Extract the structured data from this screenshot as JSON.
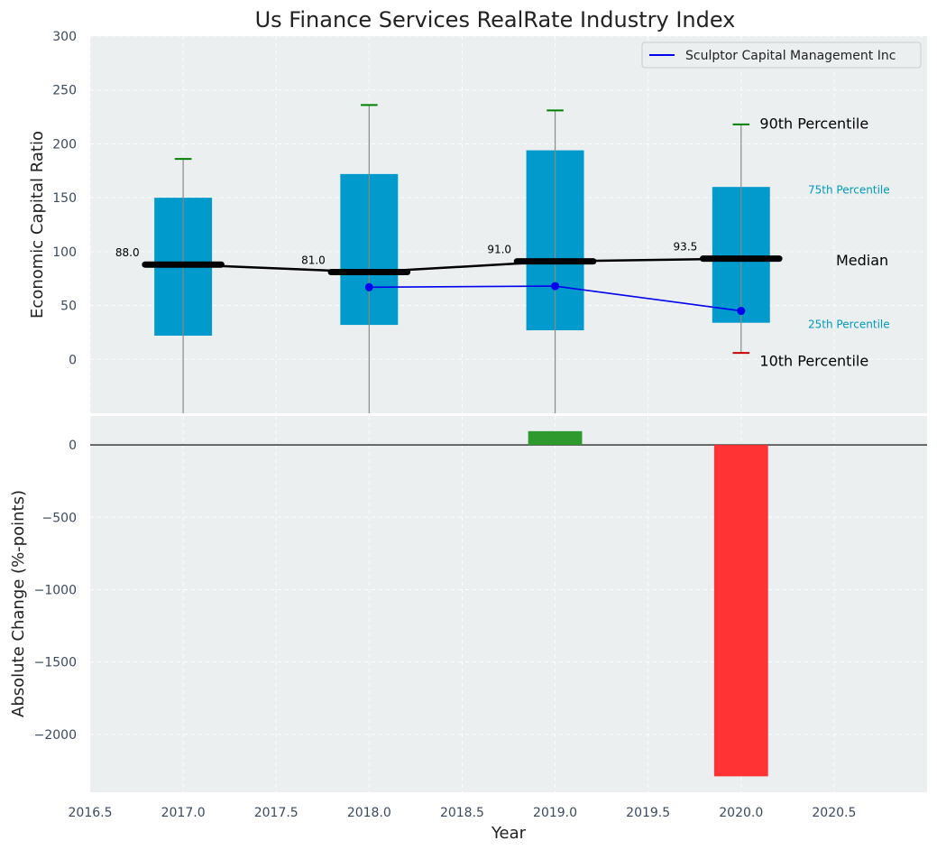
{
  "chart_data": [
    {
      "type": "box",
      "title": "Us Finance Services RealRate Industry Index",
      "ylabel": "Economic Capital Ratio",
      "xlabel": "",
      "ylim": [
        -50,
        300
      ],
      "xlim": [
        2016.5,
        2021.0
      ],
      "yticks": [
        0,
        50,
        100,
        150,
        200,
        250,
        300
      ],
      "grid": true,
      "boxes": [
        {
          "year": 2017,
          "p10": -50,
          "p25": 22,
          "median": 88.0,
          "median_label": "88.0",
          "p75": 150,
          "p90": 186
        },
        {
          "year": 2018,
          "p10": -50,
          "p25": 32,
          "median": 81.0,
          "median_label": "81.0",
          "p75": 172,
          "p90": 236
        },
        {
          "year": 2019,
          "p10": -50,
          "p25": 27,
          "median": 91.0,
          "median_label": "91.0",
          "p75": 194,
          "p90": 231
        },
        {
          "year": 2020,
          "p10": 6,
          "p25": 34,
          "median": 93.5,
          "median_label": "93.5",
          "p75": 160,
          "p90": 218
        }
      ],
      "series": [
        {
          "name": "Sculptor Capital Management Inc",
          "x": [
            2018,
            2019,
            2020
          ],
          "values": [
            67,
            68,
            45
          ],
          "color": "#0000ee"
        }
      ],
      "legend": "top-right",
      "annotations": {
        "p90": "90th Percentile",
        "p75": "75th Percentile",
        "median": "Median",
        "p25": "25th Percentile",
        "p10": "10th Percentile"
      },
      "colors": {
        "box": "#009acd",
        "median": "#000000",
        "whisker_top": "#008000",
        "whisker_bottom": "#cc0000",
        "background": "#ebeff0"
      }
    },
    {
      "type": "bar",
      "ylabel": "Absolute Change (%-points)",
      "xlabel": "Year",
      "ylim": [
        -2400,
        200
      ],
      "xlim": [
        2016.5,
        2021.0
      ],
      "yticks": [
        0,
        -500,
        -1000,
        -1500,
        -2000
      ],
      "xticks": [
        2016.5,
        2017.0,
        2017.5,
        2018.0,
        2018.5,
        2019.0,
        2019.5,
        2020.0,
        2020.5
      ],
      "xtick_labels": [
        "2016.5",
        "2017.0",
        "2017.5",
        "2018.0",
        "2018.5",
        "2019.0",
        "2019.5",
        "2020.0",
        "2020.5"
      ],
      "grid": true,
      "bars": [
        {
          "year": 2019,
          "value": 95,
          "color": "#2e9a2e"
        },
        {
          "year": 2020,
          "value": -2290,
          "color": "#ff3333"
        }
      ]
    }
  ]
}
